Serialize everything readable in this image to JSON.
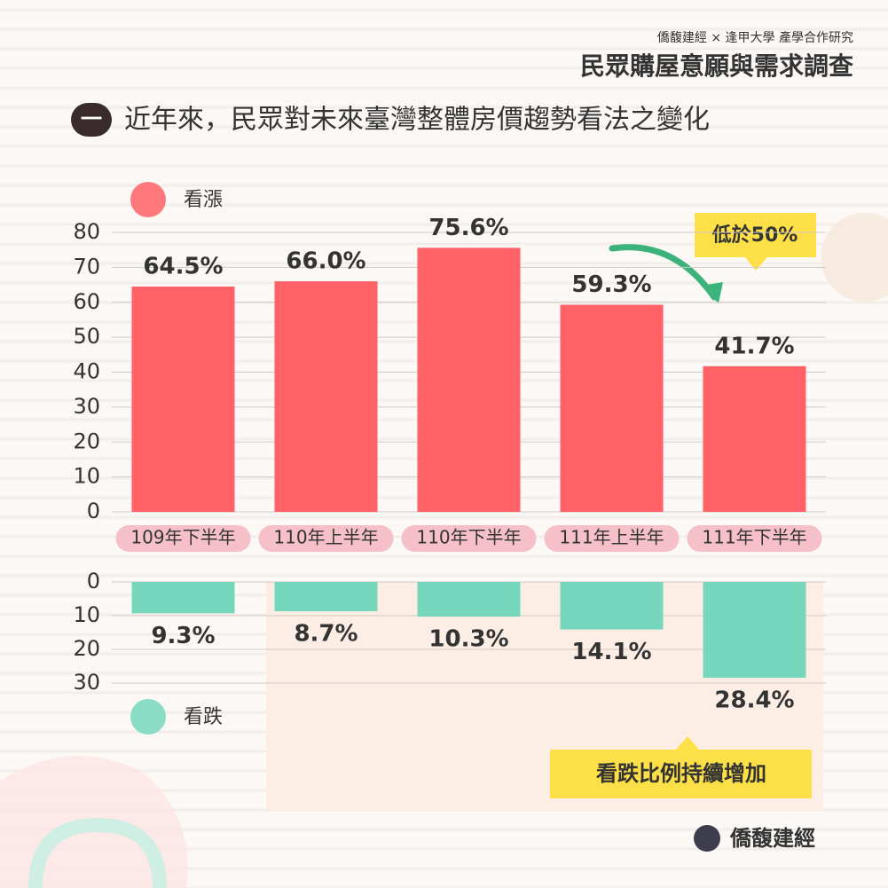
{
  "header": {
    "credit": "僑馥建經 × 逢甲大學 產學合作研究",
    "title": "民眾購屋意願與需求調查",
    "section_number": "一",
    "section_title": "近年來，民眾對未來臺灣整體房價趨勢看法之變化"
  },
  "chart_data": [
    {
      "type": "bar",
      "categories": [
        "109年下半年",
        "110年上半年",
        "110年下半年",
        "111年上半年",
        "111年下半年"
      ],
      "series": [
        {
          "name": "看漲",
          "color": "#ff6166",
          "values": [
            64.5,
            66.0,
            75.6,
            59.3,
            41.7
          ],
          "value_labels": [
            "64.5%",
            "66.0%",
            "75.6%",
            "59.3%",
            "41.7%"
          ]
        }
      ],
      "ylim": [
        0,
        80
      ],
      "yticks": [
        0,
        10,
        20,
        30,
        40,
        50,
        60,
        70,
        80
      ],
      "grid": true,
      "inverted": false,
      "annotation": "低於50%"
    },
    {
      "type": "bar",
      "series": [
        {
          "name": "看跌",
          "color": "#76d7bc",
          "values": [
            9.3,
            8.7,
            10.3,
            14.1,
            28.4
          ],
          "value_labels": [
            "9.3%",
            "8.7%",
            "10.3%",
            "14.1%",
            "28.4%"
          ]
        }
      ],
      "ylim": [
        0,
        30
      ],
      "yticks": [
        0,
        10,
        20,
        30
      ],
      "grid": true,
      "inverted": true,
      "annotation": "看跌比例持續增加"
    }
  ],
  "footer": {
    "logo": "僑馥建經"
  }
}
